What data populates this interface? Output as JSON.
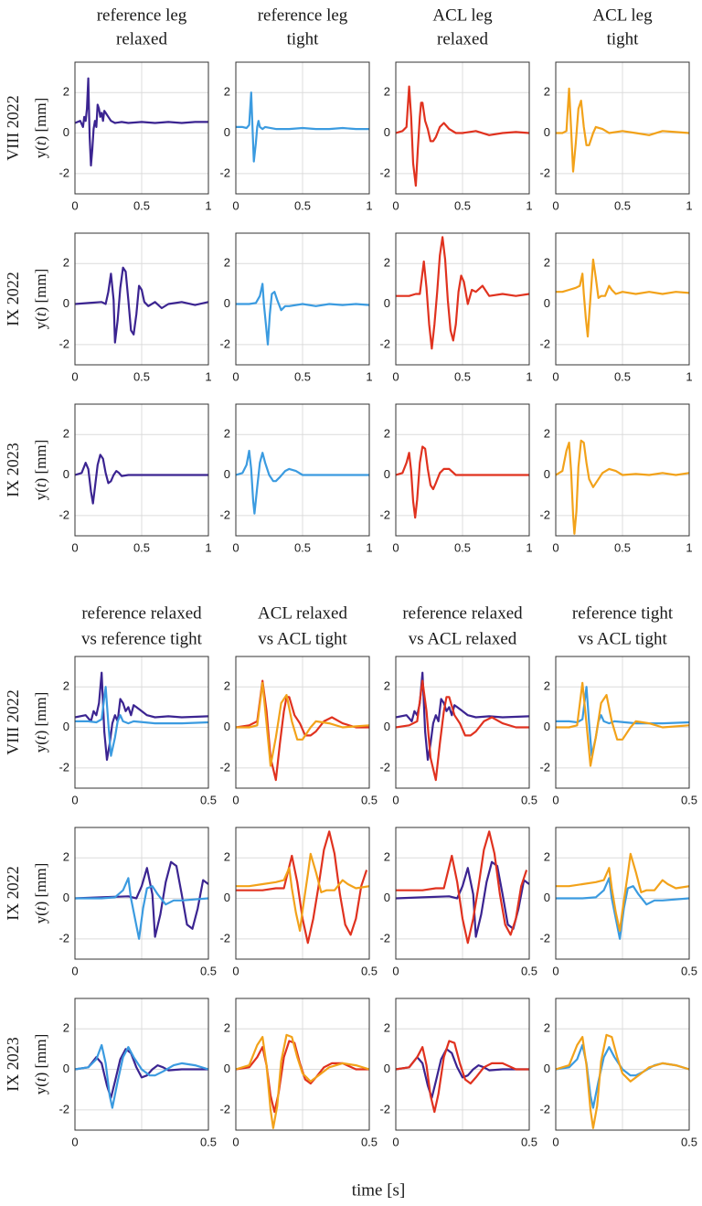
{
  "figure": {
    "xlabel": "time [s]",
    "row_labels": [
      "VIII 2022",
      "IX 2022",
      "IX 2023"
    ],
    "ylabel_prefix": "y(",
    "ylabel_var": "t",
    "ylabel_suffix": ") [mm]",
    "colors": {
      "reference relaxed": "#3b2491",
      "reference tight": "#3b9be0",
      "ACL relaxed": "#e0321f",
      "ACL tight": "#f2a21a"
    }
  },
  "chart_data": [
    {
      "type": "line",
      "block": "single",
      "x_range": [
        0,
        1
      ],
      "xticks": [
        0,
        0.5,
        1
      ],
      "ylim": [
        -3,
        3.5
      ],
      "yticks": [
        -2,
        0,
        2
      ],
      "columns": [
        {
          "title": [
            "reference leg",
            "relaxed"
          ],
          "series": [
            "reference relaxed"
          ]
        },
        {
          "title": [
            "reference leg",
            "tight"
          ],
          "series": [
            "reference tight"
          ]
        },
        {
          "title": [
            "ACL leg",
            "relaxed"
          ],
          "series": [
            "ACL relaxed"
          ]
        },
        {
          "title": [
            "ACL leg",
            "tight"
          ],
          "series": [
            "ACL tight"
          ]
        }
      ],
      "rows": [
        "VIII 2022",
        "IX 2022",
        "IX 2023"
      ],
      "grid": true
    },
    {
      "type": "line",
      "block": "comparison",
      "x_range": [
        0,
        0.5
      ],
      "xticks": [
        0,
        0.5
      ],
      "ylim": [
        -3,
        3.5
      ],
      "yticks": [
        -2,
        0,
        2
      ],
      "columns": [
        {
          "title": [
            "reference relaxed",
            "vs reference tight"
          ],
          "series": [
            "reference relaxed",
            "reference tight"
          ]
        },
        {
          "title": [
            "ACL relaxed",
            "vs ACL tight"
          ],
          "series": [
            "ACL relaxed",
            "ACL tight"
          ]
        },
        {
          "title": [
            "reference relaxed",
            "vs ACL relaxed"
          ],
          "series": [
            "reference relaxed",
            "ACL relaxed"
          ]
        },
        {
          "title": [
            "reference tight",
            "vs ACL tight"
          ],
          "series": [
            "reference tight",
            "ACL tight"
          ]
        }
      ],
      "rows": [
        "VIII 2022",
        "IX 2022",
        "IX 2023"
      ],
      "grid": true
    }
  ],
  "signals": {
    "VIII 2022": {
      "reference relaxed": [
        [
          0,
          0.5
        ],
        [
          0.04,
          0.6
        ],
        [
          0.06,
          0.3
        ],
        [
          0.07,
          0.8
        ],
        [
          0.08,
          0.6
        ],
        [
          0.09,
          1.2
        ],
        [
          0.1,
          2.7
        ],
        [
          0.105,
          1.2
        ],
        [
          0.11,
          -0.2
        ],
        [
          0.12,
          -1.6
        ],
        [
          0.13,
          -0.8
        ],
        [
          0.14,
          0.2
        ],
        [
          0.15,
          0.6
        ],
        [
          0.16,
          0.3
        ],
        [
          0.17,
          1.4
        ],
        [
          0.18,
          1.2
        ],
        [
          0.19,
          0.8
        ],
        [
          0.2,
          1.0
        ],
        [
          0.21,
          0.6
        ],
        [
          0.22,
          1.1
        ],
        [
          0.23,
          1.0
        ],
        [
          0.25,
          0.8
        ],
        [
          0.27,
          0.6
        ],
        [
          0.3,
          0.5
        ],
        [
          0.35,
          0.55
        ],
        [
          0.4,
          0.5
        ],
        [
          0.5,
          0.55
        ],
        [
          0.6,
          0.5
        ],
        [
          0.7,
          0.55
        ],
        [
          0.8,
          0.5
        ],
        [
          0.9,
          0.55
        ],
        [
          1.0,
          0.55
        ]
      ],
      "reference tight": [
        [
          0,
          0.3
        ],
        [
          0.05,
          0.3
        ],
        [
          0.08,
          0.25
        ],
        [
          0.1,
          0.4
        ],
        [
          0.115,
          2.0
        ],
        [
          0.125,
          0.2
        ],
        [
          0.135,
          -1.4
        ],
        [
          0.15,
          -0.5
        ],
        [
          0.16,
          0.3
        ],
        [
          0.17,
          0.6
        ],
        [
          0.18,
          0.3
        ],
        [
          0.2,
          0.2
        ],
        [
          0.22,
          0.3
        ],
        [
          0.3,
          0.2
        ],
        [
          0.4,
          0.2
        ],
        [
          0.5,
          0.25
        ],
        [
          0.6,
          0.2
        ],
        [
          0.7,
          0.2
        ],
        [
          0.8,
          0.25
        ],
        [
          0.9,
          0.2
        ],
        [
          1.0,
          0.2
        ]
      ],
      "ACL relaxed": [
        [
          0,
          0.0
        ],
        [
          0.05,
          0.1
        ],
        [
          0.08,
          0.3
        ],
        [
          0.1,
          2.3
        ],
        [
          0.115,
          0.8
        ],
        [
          0.13,
          -1.5
        ],
        [
          0.15,
          -2.6
        ],
        [
          0.165,
          -0.8
        ],
        [
          0.18,
          0.8
        ],
        [
          0.19,
          1.5
        ],
        [
          0.2,
          1.5
        ],
        [
          0.22,
          0.6
        ],
        [
          0.24,
          0.2
        ],
        [
          0.26,
          -0.4
        ],
        [
          0.28,
          -0.4
        ],
        [
          0.3,
          -0.2
        ],
        [
          0.33,
          0.3
        ],
        [
          0.36,
          0.5
        ],
        [
          0.4,
          0.2
        ],
        [
          0.45,
          0.0
        ],
        [
          0.5,
          0.0
        ],
        [
          0.6,
          0.1
        ],
        [
          0.7,
          -0.1
        ],
        [
          0.8,
          0.0
        ],
        [
          0.9,
          0.05
        ],
        [
          1.0,
          0.0
        ]
      ],
      "ACL tight": [
        [
          0,
          0.0
        ],
        [
          0.05,
          0.0
        ],
        [
          0.08,
          0.1
        ],
        [
          0.1,
          2.2
        ],
        [
          0.115,
          0.2
        ],
        [
          0.13,
          -1.9
        ],
        [
          0.15,
          -0.5
        ],
        [
          0.17,
          1.2
        ],
        [
          0.19,
          1.6
        ],
        [
          0.21,
          0.3
        ],
        [
          0.23,
          -0.6
        ],
        [
          0.25,
          -0.6
        ],
        [
          0.28,
          0.0
        ],
        [
          0.3,
          0.3
        ],
        [
          0.35,
          0.2
        ],
        [
          0.4,
          0.0
        ],
        [
          0.5,
          0.1
        ],
        [
          0.6,
          0.0
        ],
        [
          0.7,
          -0.1
        ],
        [
          0.8,
          0.1
        ],
        [
          0.9,
          0.05
        ],
        [
          1.0,
          0.0
        ]
      ]
    },
    "IX 2022": {
      "reference relaxed": [
        [
          0,
          0.0
        ],
        [
          0.1,
          0.05
        ],
        [
          0.2,
          0.1
        ],
        [
          0.23,
          0.0
        ],
        [
          0.25,
          0.6
        ],
        [
          0.27,
          1.5
        ],
        [
          0.29,
          0.2
        ],
        [
          0.3,
          -1.9
        ],
        [
          0.32,
          -0.8
        ],
        [
          0.34,
          0.8
        ],
        [
          0.36,
          1.8
        ],
        [
          0.38,
          1.6
        ],
        [
          0.4,
          0.2
        ],
        [
          0.42,
          -1.3
        ],
        [
          0.44,
          -1.5
        ],
        [
          0.46,
          -0.5
        ],
        [
          0.48,
          0.9
        ],
        [
          0.5,
          0.7
        ],
        [
          0.52,
          0.1
        ],
        [
          0.55,
          -0.1
        ],
        [
          0.6,
          0.1
        ],
        [
          0.65,
          -0.2
        ],
        [
          0.7,
          0.0
        ],
        [
          0.8,
          0.1
        ],
        [
          0.9,
          -0.05
        ],
        [
          1.0,
          0.1
        ]
      ],
      "reference tight": [
        [
          0,
          0.0
        ],
        [
          0.1,
          0.0
        ],
        [
          0.15,
          0.05
        ],
        [
          0.18,
          0.4
        ],
        [
          0.2,
          1.0
        ],
        [
          0.21,
          0.0
        ],
        [
          0.225,
          -1.0
        ],
        [
          0.24,
          -2.0
        ],
        [
          0.255,
          -0.5
        ],
        [
          0.27,
          0.5
        ],
        [
          0.29,
          0.6
        ],
        [
          0.31,
          0.2
        ],
        [
          0.34,
          -0.3
        ],
        [
          0.37,
          -0.1
        ],
        [
          0.4,
          -0.1
        ],
        [
          0.5,
          0.0
        ],
        [
          0.6,
          -0.1
        ],
        [
          0.7,
          0.0
        ],
        [
          0.8,
          -0.05
        ],
        [
          0.9,
          0.0
        ],
        [
          1.0,
          -0.05
        ]
      ],
      "ACL relaxed": [
        [
          0,
          0.4
        ],
        [
          0.1,
          0.4
        ],
        [
          0.15,
          0.5
        ],
        [
          0.18,
          0.5
        ],
        [
          0.21,
          2.1
        ],
        [
          0.23,
          0.8
        ],
        [
          0.25,
          -1.0
        ],
        [
          0.27,
          -2.2
        ],
        [
          0.29,
          -1.0
        ],
        [
          0.31,
          0.6
        ],
        [
          0.33,
          2.4
        ],
        [
          0.35,
          3.3
        ],
        [
          0.37,
          2.2
        ],
        [
          0.39,
          0.2
        ],
        [
          0.41,
          -1.3
        ],
        [
          0.43,
          -1.8
        ],
        [
          0.45,
          -1.0
        ],
        [
          0.47,
          0.6
        ],
        [
          0.49,
          1.4
        ],
        [
          0.51,
          1.1
        ],
        [
          0.54,
          0.0
        ],
        [
          0.57,
          0.7
        ],
        [
          0.6,
          0.6
        ],
        [
          0.65,
          0.9
        ],
        [
          0.7,
          0.4
        ],
        [
          0.8,
          0.5
        ],
        [
          0.9,
          0.4
        ],
        [
          1.0,
          0.5
        ]
      ],
      "ACL tight": [
        [
          0,
          0.6
        ],
        [
          0.05,
          0.6
        ],
        [
          0.1,
          0.7
        ],
        [
          0.15,
          0.8
        ],
        [
          0.18,
          0.9
        ],
        [
          0.2,
          1.5
        ],
        [
          0.21,
          0.5
        ],
        [
          0.225,
          -0.7
        ],
        [
          0.24,
          -1.6
        ],
        [
          0.25,
          -0.6
        ],
        [
          0.27,
          1.2
        ],
        [
          0.28,
          2.2
        ],
        [
          0.3,
          1.3
        ],
        [
          0.32,
          0.3
        ],
        [
          0.34,
          0.4
        ],
        [
          0.37,
          0.4
        ],
        [
          0.4,
          0.9
        ],
        [
          0.42,
          0.7
        ],
        [
          0.45,
          0.5
        ],
        [
          0.5,
          0.6
        ],
        [
          0.6,
          0.5
        ],
        [
          0.7,
          0.6
        ],
        [
          0.8,
          0.5
        ],
        [
          0.9,
          0.6
        ],
        [
          1.0,
          0.55
        ]
      ]
    },
    "IX 2023": {
      "reference relaxed": [
        [
          0,
          0.0
        ],
        [
          0.05,
          0.1
        ],
        [
          0.08,
          0.6
        ],
        [
          0.1,
          0.3
        ],
        [
          0.12,
          -0.8
        ],
        [
          0.135,
          -1.4
        ],
        [
          0.15,
          -0.6
        ],
        [
          0.17,
          0.5
        ],
        [
          0.19,
          1.0
        ],
        [
          0.21,
          0.8
        ],
        [
          0.23,
          0.1
        ],
        [
          0.25,
          -0.4
        ],
        [
          0.27,
          -0.3
        ],
        [
          0.29,
          0.0
        ],
        [
          0.31,
          0.2
        ],
        [
          0.33,
          0.1
        ],
        [
          0.35,
          -0.05
        ],
        [
          0.4,
          0.0
        ],
        [
          0.5,
          0.0
        ],
        [
          0.6,
          0.0
        ],
        [
          0.7,
          0.0
        ],
        [
          0.8,
          0.0
        ],
        [
          0.9,
          0.0
        ],
        [
          1.0,
          0.0
        ]
      ],
      "reference tight": [
        [
          0,
          0.0
        ],
        [
          0.05,
          0.1
        ],
        [
          0.08,
          0.5
        ],
        [
          0.1,
          1.2
        ],
        [
          0.115,
          0.3
        ],
        [
          0.13,
          -1.3
        ],
        [
          0.14,
          -1.9
        ],
        [
          0.16,
          -0.6
        ],
        [
          0.18,
          0.6
        ],
        [
          0.2,
          1.1
        ],
        [
          0.22,
          0.6
        ],
        [
          0.25,
          0.0
        ],
        [
          0.28,
          -0.3
        ],
        [
          0.3,
          -0.3
        ],
        [
          0.33,
          -0.1
        ],
        [
          0.37,
          0.2
        ],
        [
          0.4,
          0.3
        ],
        [
          0.45,
          0.2
        ],
        [
          0.5,
          0.0
        ],
        [
          0.6,
          0.0
        ],
        [
          0.7,
          0.0
        ],
        [
          0.8,
          0.0
        ],
        [
          0.9,
          0.0
        ],
        [
          1.0,
          0.0
        ]
      ],
      "ACL relaxed": [
        [
          0,
          0.0
        ],
        [
          0.05,
          0.1
        ],
        [
          0.08,
          0.6
        ],
        [
          0.1,
          1.1
        ],
        [
          0.115,
          0.2
        ],
        [
          0.13,
          -1.3
        ],
        [
          0.145,
          -2.1
        ],
        [
          0.16,
          -1.2
        ],
        [
          0.18,
          0.6
        ],
        [
          0.2,
          1.4
        ],
        [
          0.22,
          1.3
        ],
        [
          0.24,
          0.3
        ],
        [
          0.26,
          -0.5
        ],
        [
          0.28,
          -0.7
        ],
        [
          0.3,
          -0.4
        ],
        [
          0.33,
          0.1
        ],
        [
          0.36,
          0.3
        ],
        [
          0.4,
          0.3
        ],
        [
          0.45,
          0.0
        ],
        [
          0.5,
          0.0
        ],
        [
          0.6,
          0.0
        ],
        [
          0.7,
          0.0
        ],
        [
          0.8,
          0.0
        ],
        [
          0.9,
          0.0
        ],
        [
          1.0,
          0.0
        ]
      ],
      "ACL tight": [
        [
          0,
          0.0
        ],
        [
          0.05,
          0.2
        ],
        [
          0.08,
          1.2
        ],
        [
          0.1,
          1.6
        ],
        [
          0.115,
          0.2
        ],
        [
          0.13,
          -2.0
        ],
        [
          0.14,
          -2.9
        ],
        [
          0.155,
          -1.8
        ],
        [
          0.17,
          0.4
        ],
        [
          0.19,
          1.7
        ],
        [
          0.21,
          1.6
        ],
        [
          0.23,
          0.6
        ],
        [
          0.25,
          -0.2
        ],
        [
          0.28,
          -0.6
        ],
        [
          0.31,
          -0.3
        ],
        [
          0.35,
          0.1
        ],
        [
          0.4,
          0.3
        ],
        [
          0.45,
          0.2
        ],
        [
          0.5,
          0.0
        ],
        [
          0.6,
          0.05
        ],
        [
          0.7,
          0.0
        ],
        [
          0.8,
          0.1
        ],
        [
          0.9,
          0.0
        ],
        [
          1.0,
          0.1
        ]
      ]
    }
  }
}
